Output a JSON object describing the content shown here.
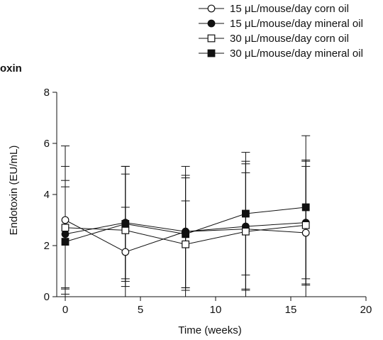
{
  "panel_title_fragment": "oxin",
  "chart_data": {
    "type": "line",
    "title": "",
    "xlabel": "Time (weeks)",
    "ylabel": "Endotoxin (EU/mL)",
    "xlim": [
      0,
      20
    ],
    "ylim": [
      0,
      8
    ],
    "x_ticks": [
      0,
      5,
      10,
      15,
      20
    ],
    "y_ticks": [
      0,
      2,
      4,
      6,
      8
    ],
    "grid": false,
    "legend_position": "top-right",
    "x": [
      0,
      4,
      8,
      12,
      16
    ],
    "series": [
      {
        "name": "15 μL/mouse/day corn oil",
        "marker": "circle",
        "filled": false,
        "values": [
          3.0,
          1.75,
          2.55,
          2.65,
          2.5
        ],
        "error": [
          2.9,
          1.75,
          2.2,
          2.65,
          2.8
        ]
      },
      {
        "name": "15 μL/mouse/day mineral oil",
        "marker": "circle",
        "filled": true,
        "values": [
          2.45,
          2.9,
          2.55,
          2.75,
          2.9
        ],
        "error": [
          2.1,
          2.2,
          2.55,
          2.45,
          2.45
        ]
      },
      {
        "name": "30 μL/mouse/day corn oil",
        "marker": "square",
        "filled": false,
        "values": [
          2.7,
          2.6,
          2.05,
          2.55,
          2.8
        ],
        "error": [
          2.4,
          2.2,
          1.7,
          2.3,
          2.3
        ]
      },
      {
        "name": "30 μL/mouse/day mineral oil",
        "marker": "square",
        "filled": true,
        "values": [
          2.15,
          2.85,
          2.45,
          3.25,
          3.5
        ],
        "error": [
          2.15,
          2.25,
          2.2,
          2.4,
          2.8
        ]
      }
    ]
  }
}
